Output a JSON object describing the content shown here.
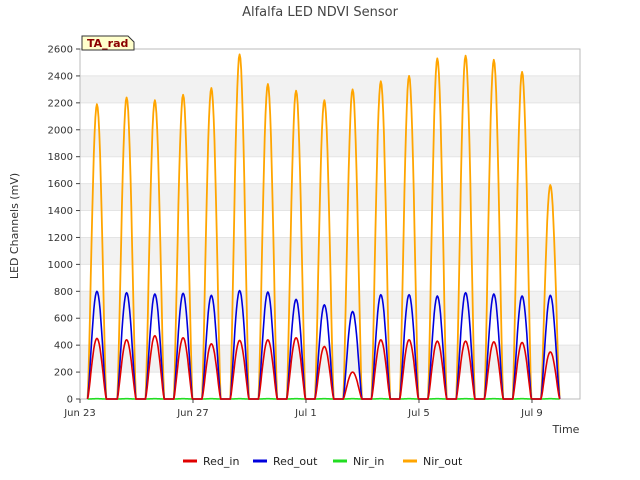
{
  "chart_data": {
    "type": "line",
    "title": "Alfalfa LED NDVI Sensor",
    "xlabel": "Time",
    "ylabel": "LED Channels (mV)",
    "ylim": [
      0,
      2600
    ],
    "yticks": [
      0,
      200,
      400,
      600,
      800,
      1000,
      1200,
      1400,
      1600,
      1800,
      2000,
      2200,
      2400,
      2600
    ],
    "xlim": [
      0,
      17.7
    ],
    "xticks": [
      {
        "day": 0,
        "label": "Jun 23"
      },
      {
        "day": 4,
        "label": "Jun 27"
      },
      {
        "day": 8,
        "label": "Jul 1"
      },
      {
        "day": 12,
        "label": "Jul 5"
      },
      {
        "day": 16,
        "label": "Jul 9"
      }
    ],
    "badge": "TA_rad",
    "grid": "horizontal alternating bands",
    "legend_position": "bottom",
    "series": [
      {
        "name": "Red_in",
        "color": "#e00000",
        "daily_peaks": [
          450,
          440,
          470,
          455,
          410,
          435,
          440,
          455,
          390,
          200,
          440,
          440,
          430,
          430,
          425,
          420,
          350
        ]
      },
      {
        "name": "Red_out",
        "color": "#0000dd",
        "daily_peaks": [
          800,
          790,
          780,
          785,
          770,
          805,
          795,
          740,
          700,
          650,
          775,
          775,
          765,
          790,
          780,
          765,
          770
        ]
      },
      {
        "name": "Nir_in",
        "color": "#22dd22",
        "daily_peaks": [
          2,
          2,
          2,
          2,
          2,
          2,
          2,
          2,
          2,
          2,
          2,
          2,
          2,
          2,
          2,
          2,
          2
        ]
      },
      {
        "name": "Nir_out",
        "color": "#ffa500",
        "daily_peaks": [
          2190,
          2240,
          2220,
          2260,
          2310,
          2560,
          2340,
          2290,
          2220,
          2300,
          2360,
          2400,
          2530,
          2550,
          2520,
          2430,
          1590
        ]
      }
    ],
    "day_peak_offsets": [
      0.6,
      1.65,
      2.65,
      3.65,
      4.65,
      5.65,
      6.65,
      7.65,
      8.65,
      9.65,
      10.65,
      11.65,
      12.65,
      13.65,
      14.65,
      15.65,
      16.65
    ],
    "day_halfwidth": 0.33
  }
}
